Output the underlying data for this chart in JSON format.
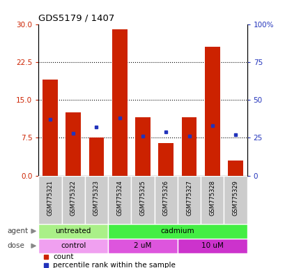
{
  "title": "GDS5179 / 1407",
  "samples": [
    "GSM775321",
    "GSM775322",
    "GSM775323",
    "GSM775324",
    "GSM775325",
    "GSM775326",
    "GSM775327",
    "GSM775328",
    "GSM775329"
  ],
  "counts": [
    19.0,
    12.5,
    7.5,
    29.0,
    11.5,
    6.5,
    11.5,
    25.5,
    3.0
  ],
  "percentile_ranks": [
    37,
    28,
    32,
    38,
    26,
    29,
    26,
    33,
    27
  ],
  "left_ylim": [
    0,
    30
  ],
  "right_ylim": [
    0,
    100
  ],
  "left_yticks": [
    0,
    7.5,
    15,
    22.5,
    30
  ],
  "right_yticks": [
    0,
    25,
    50,
    75,
    100
  ],
  "right_yticklabels": [
    "0",
    "25",
    "50",
    "75",
    "100%"
  ],
  "bar_color": "#cc2200",
  "dot_color": "#2233bb",
  "agent_groups": [
    {
      "label": "untreated",
      "start": 0,
      "end": 3,
      "color": "#aaf088"
    },
    {
      "label": "cadmium",
      "start": 3,
      "end": 9,
      "color": "#44ee44"
    }
  ],
  "dose_groups": [
    {
      "label": "control",
      "start": 0,
      "end": 3,
      "color": "#f0a0f0"
    },
    {
      "label": "2 uM",
      "start": 3,
      "end": 6,
      "color": "#dd55dd"
    },
    {
      "label": "10 uM",
      "start": 6,
      "end": 9,
      "color": "#cc33cc"
    }
  ],
  "tick_bg_color": "#cccccc",
  "legend_items": [
    {
      "color": "#cc2200",
      "label": "count"
    },
    {
      "color": "#2233bb",
      "label": "percentile rank within the sample"
    }
  ],
  "agent_label": "agent",
  "dose_label": "dose",
  "grid_dotted_at": [
    7.5,
    15,
    22.5
  ]
}
